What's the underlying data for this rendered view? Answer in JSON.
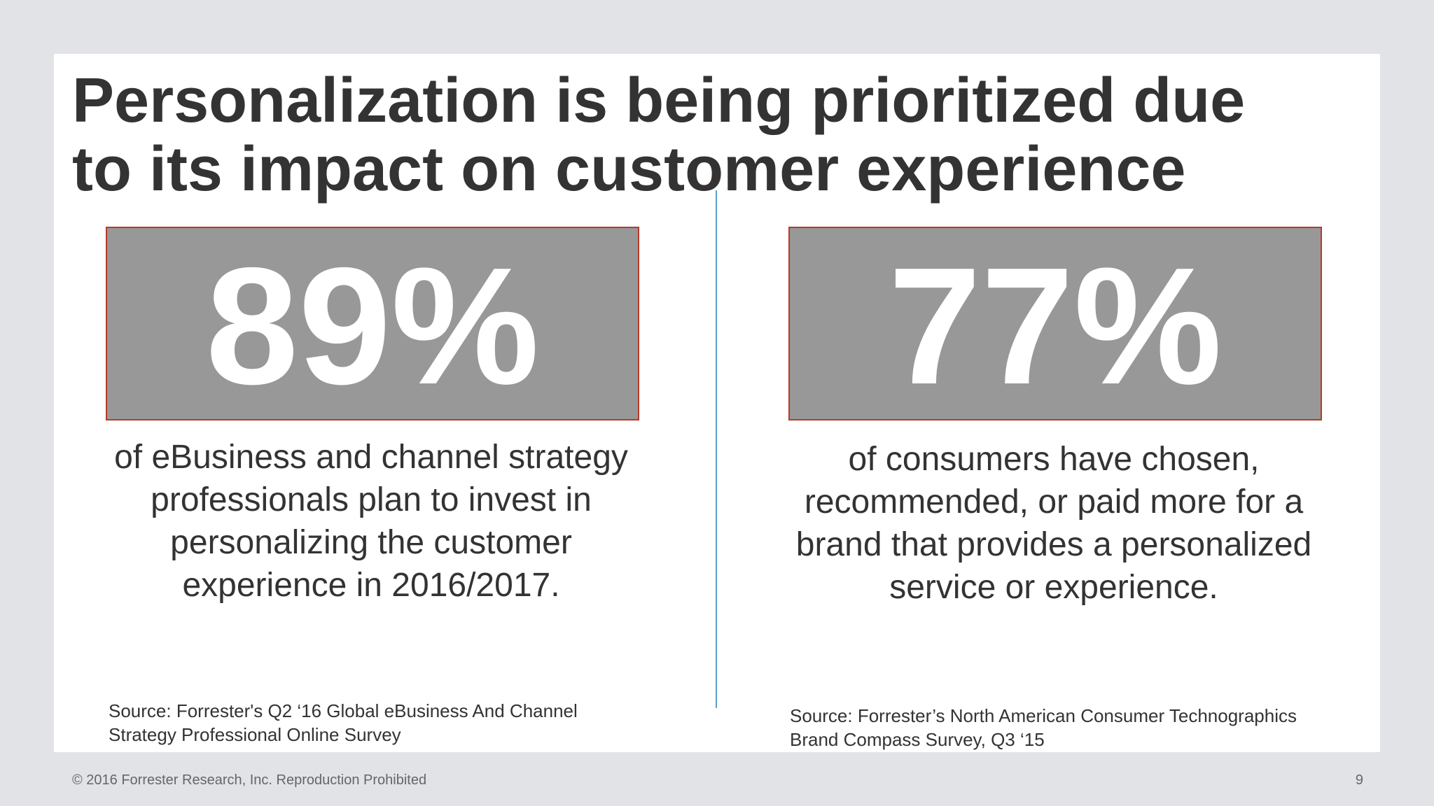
{
  "title": {
    "line1": "Personalization is being prioritized due",
    "line2": "to its impact on customer experience"
  },
  "stats": [
    {
      "value": "89%",
      "description": [
        "of eBusiness and channel strategy",
        "professionals plan to invest in",
        "personalizing the customer",
        "experience in 2016/2017."
      ],
      "source": [
        "Source: Forrester's Q2 ‘16 Global eBusiness And Channel",
        "Strategy Professional Online Survey"
      ]
    },
    {
      "value": "77%",
      "description": [
        "of consumers have chosen,",
        "recommended, or paid more for a",
        "brand that provides a personalized",
        "service or experience."
      ],
      "source": [
        "Source: Forrester’s North American Consumer Technographics",
        "Brand Compass Survey, Q3 ‘15"
      ]
    }
  ],
  "footer": {
    "copyright": "© 2016 Forrester Research, Inc. Reproduction Prohibited",
    "page_number": "9"
  },
  "colors": {
    "stat_box_fill": "#989898",
    "stat_box_border": "#b83a2a",
    "divider": "#5aa0c8",
    "title_text": "#333333"
  }
}
